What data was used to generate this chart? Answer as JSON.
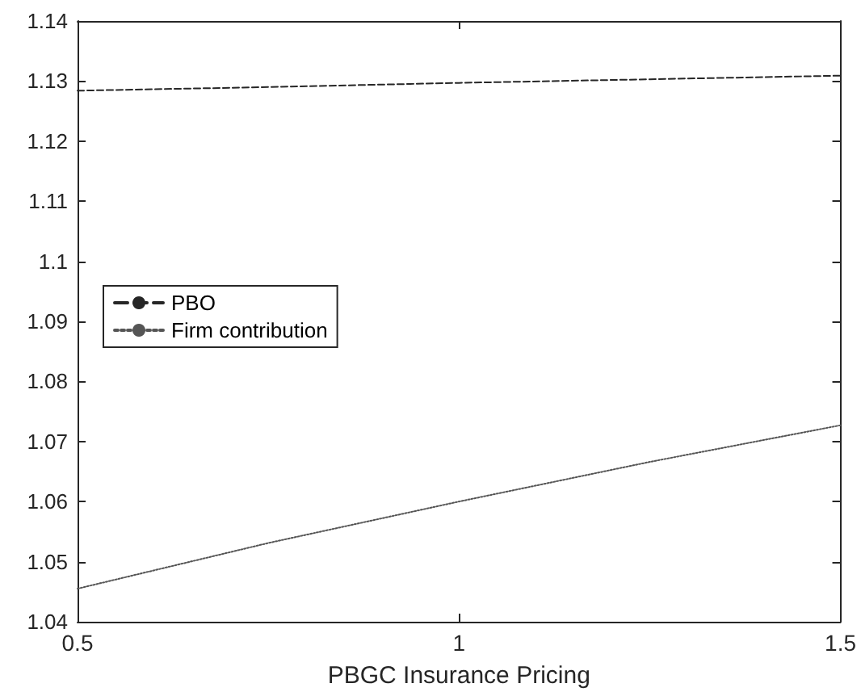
{
  "chart_data": {
    "type": "line",
    "xlabel": "PBGC Insurance Pricing",
    "x": [
      0.5,
      0.75,
      1,
      1.25,
      1.5
    ],
    "series": [
      {
        "name": "PBO",
        "color": "#262626",
        "line_style": "dashed",
        "values": [
          1.1284,
          1.129,
          1.1297,
          1.1303,
          1.1309
        ]
      },
      {
        "name": "Firm contribution",
        "color": "#555555",
        "line_style": "dotted",
        "values": [
          1.0455,
          1.0531,
          1.06,
          1.0666,
          1.0727
        ]
      }
    ],
    "xlim": [
      0.5,
      1.5
    ],
    "xticks": [
      0.5,
      1,
      1.5
    ],
    "ylim": [
      1.04,
      1.14
    ],
    "yticks": [
      1.04,
      1.05,
      1.06,
      1.07,
      1.08,
      1.09,
      1.1,
      1.11,
      1.12,
      1.13,
      1.14
    ],
    "grid": false,
    "legend": "left",
    "marker": "none"
  }
}
